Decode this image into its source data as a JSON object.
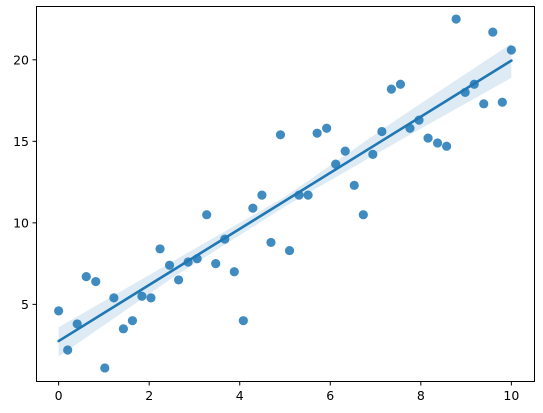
{
  "chart_data": {
    "type": "scatter",
    "title": "",
    "xlabel": "",
    "ylabel": "",
    "xlim": [
      -0.5,
      10.5
    ],
    "ylim": [
      0.3,
      23.3
    ],
    "x_ticks": [
      0,
      2,
      4,
      6,
      8,
      10
    ],
    "x_tick_labels": [
      "0",
      "2",
      "4",
      "6",
      "8",
      "10"
    ],
    "y_ticks": [
      5,
      10,
      15,
      20
    ],
    "y_tick_labels": [
      "5",
      "10",
      "15",
      "20"
    ],
    "grid": false,
    "legend": "none",
    "colors": {
      "points": "#1f77b4",
      "regression_line": "#1f77b4",
      "confidence_band": "#1f77b4"
    },
    "series": [
      {
        "kind": "points",
        "x": [
          0.0,
          0.2,
          0.41,
          0.61,
          0.82,
          1.02,
          1.22,
          1.43,
          1.63,
          1.84,
          2.04,
          2.24,
          2.45,
          2.65,
          2.86,
          3.06,
          3.27,
          3.47,
          3.67,
          3.88,
          4.08,
          4.29,
          4.49,
          4.69,
          4.9,
          5.1,
          5.31,
          5.51,
          5.71,
          5.92,
          6.12,
          6.33,
          6.53,
          6.73,
          6.94,
          7.14,
          7.35,
          7.55,
          7.76,
          7.96,
          8.16,
          8.37,
          8.57,
          8.78,
          8.98,
          9.18,
          9.39,
          9.59,
          9.8,
          10.0
        ],
        "y": [
          4.6,
          2.2,
          3.8,
          6.7,
          6.4,
          1.1,
          5.4,
          3.5,
          4.0,
          5.5,
          5.4,
          8.4,
          7.4,
          6.5,
          7.6,
          7.8,
          10.5,
          7.5,
          9.0,
          7.0,
          4.0,
          10.9,
          11.7,
          8.8,
          15.4,
          8.3,
          11.7,
          11.7,
          15.5,
          15.8,
          13.6,
          14.4,
          12.3,
          10.5,
          14.2,
          15.6,
          18.2,
          18.5,
          15.8,
          16.3,
          15.2,
          14.9,
          14.7,
          22.5,
          18.0,
          18.5,
          17.3,
          21.7,
          17.4,
          20.6
        ]
      },
      {
        "kind": "regression_line",
        "x": [
          0,
          10
        ],
        "y": [
          2.75,
          19.95
        ]
      },
      {
        "kind": "confidence_band",
        "x": [
          0,
          2.5,
          5,
          7.5,
          10
        ],
        "lower": [
          1.8,
          6.6,
          11.0,
          15.0,
          18.9
        ],
        "upper": [
          3.6,
          7.6,
          11.6,
          16.4,
          21.0
        ]
      }
    ]
  }
}
